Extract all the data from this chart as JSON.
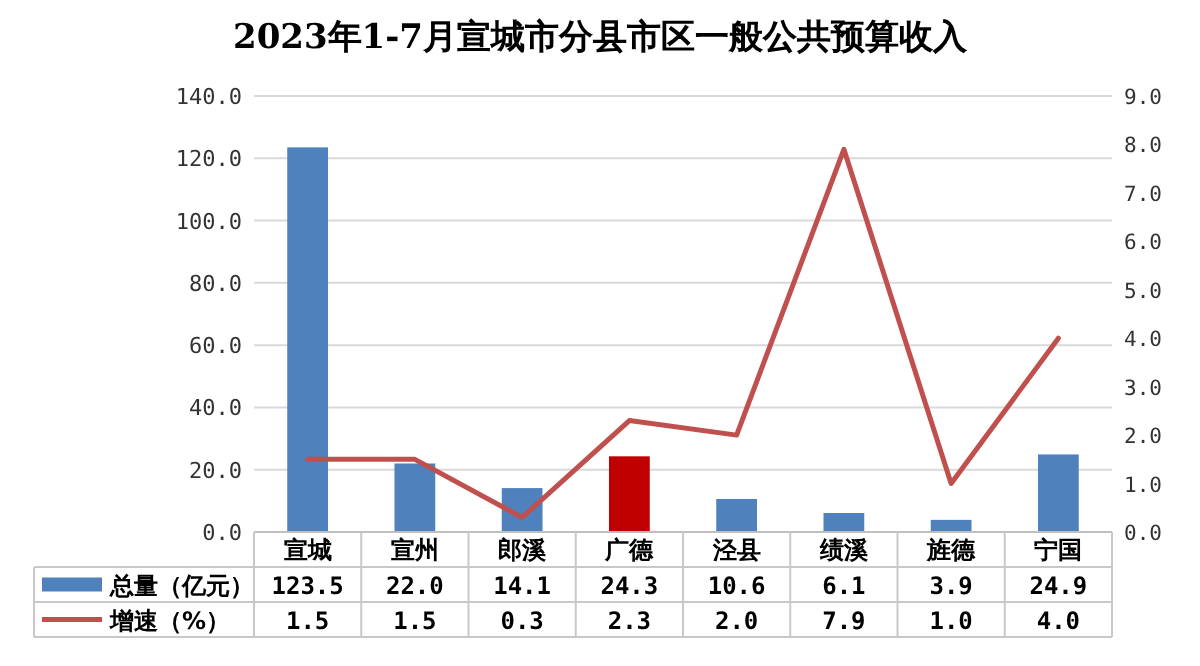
{
  "chart_data": {
    "type": "bar",
    "title": "2023年1-7月宣城市分县市区一般公共预算收入",
    "categories": [
      "宣城",
      "宣州",
      "郎溪",
      "广德",
      "泾县",
      "绩溪",
      "旌德",
      "宁国"
    ],
    "series": [
      {
        "name": "总量（亿元）",
        "color": "#4f81bd",
        "colors": [
          "#4f81bd",
          "#4f81bd",
          "#4f81bd",
          "#c00000",
          "#4f81bd",
          "#4f81bd",
          "#4f81bd",
          "#4f81bd"
        ],
        "values": [
          123.5,
          22.0,
          14.1,
          24.3,
          10.6,
          6.1,
          3.9,
          24.9
        ],
        "value_labels": [
          "123.5",
          "22.0",
          "14.1",
          "24.3",
          "10.6",
          "6.1",
          "3.9",
          "24.9"
        ]
      },
      {
        "name": "增速（%）",
        "type": "line",
        "axis": "y2",
        "color": "#c0504d",
        "values": [
          1.5,
          1.5,
          0.3,
          2.3,
          2.0,
          7.9,
          1.0,
          4.0
        ],
        "value_labels": [
          "1.5",
          "1.5",
          "0.3",
          "2.3",
          "2.0",
          "7.9",
          "1.0",
          "4.0"
        ]
      }
    ],
    "ylim": [
      0,
      140
    ],
    "yticks": [
      {
        "value": 0,
        "label": "0.0"
      },
      {
        "value": 20,
        "label": "20.0"
      },
      {
        "value": 40,
        "label": "40.0"
      },
      {
        "value": 60,
        "label": "60.0"
      },
      {
        "value": 80,
        "label": "80.0"
      },
      {
        "value": 100,
        "label": "100.0"
      },
      {
        "value": 120,
        "label": "120.0"
      },
      {
        "value": 140,
        "label": "140.0"
      }
    ],
    "y2lim": [
      0,
      9
    ],
    "y2ticks": [
      {
        "value": 0,
        "label": "0.0"
      },
      {
        "value": 1,
        "label": "1.0"
      },
      {
        "value": 2,
        "label": "2.0"
      },
      {
        "value": 3,
        "label": "3.0"
      },
      {
        "value": 4,
        "label": "4.0"
      },
      {
        "value": 5,
        "label": "5.0"
      },
      {
        "value": 6,
        "label": "6.0"
      },
      {
        "value": 7,
        "label": "7.0"
      },
      {
        "value": 8,
        "label": "8.0"
      },
      {
        "value": 9,
        "label": "9.0"
      }
    ],
    "grid": "y",
    "legend": "bottom left",
    "marker": "none",
    "line_style": "solid"
  }
}
